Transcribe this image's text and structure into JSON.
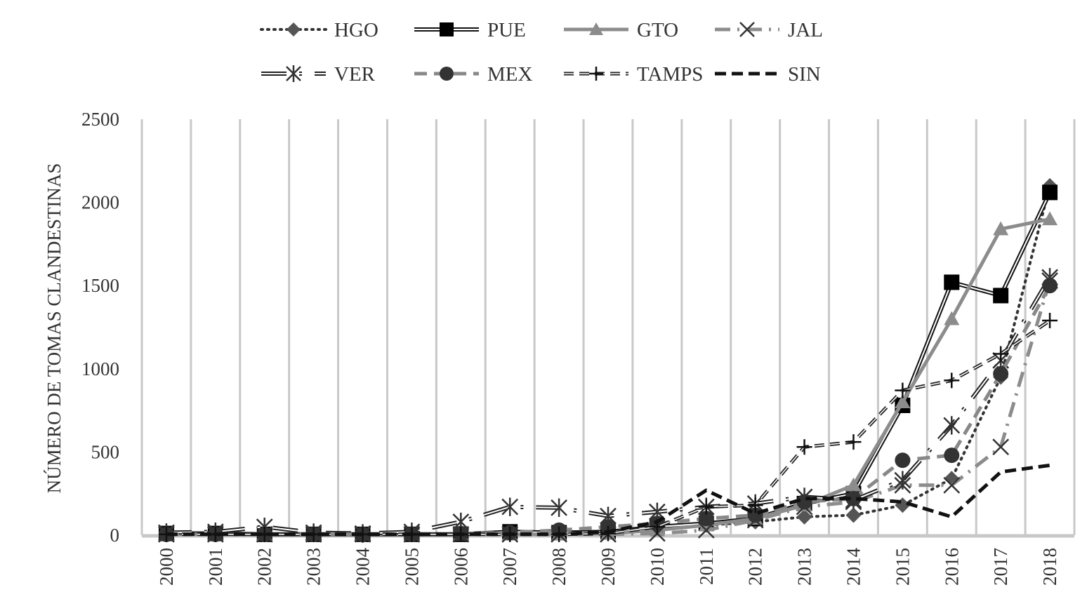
{
  "chart_data": {
    "type": "line",
    "title": "",
    "xlabel": "",
    "ylabel": "NÚMERO DE TOMAS CLANDESTINAS",
    "ylim": [
      0,
      2500
    ],
    "yticks": [
      0,
      500,
      1000,
      1500,
      2000,
      2500
    ],
    "grid": "vertical",
    "legend_position": "top",
    "categories": [
      "2000",
      "2001",
      "2002",
      "2003",
      "2004",
      "2005",
      "2006",
      "2007",
      "2008",
      "2009",
      "2010",
      "2011",
      "2012",
      "2013",
      "2014",
      "2015",
      "2016",
      "2017",
      "2018"
    ],
    "series": [
      {
        "name": "HGO",
        "style": "dotted",
        "marker": "diamond",
        "color": "#333333",
        "values": [
          5,
          5,
          5,
          5,
          5,
          5,
          5,
          10,
          10,
          20,
          40,
          60,
          80,
          110,
          120,
          180,
          340,
          950,
          2100
        ]
      },
      {
        "name": "PUE",
        "style": "double",
        "marker": "square",
        "color": "#111111",
        "values": [
          10,
          10,
          5,
          5,
          5,
          5,
          5,
          20,
          15,
          20,
          50,
          70,
          100,
          190,
          250,
          780,
          1520,
          1440,
          2060
        ]
      },
      {
        "name": "GTO",
        "style": "solid-gray",
        "marker": "triangle",
        "color": "#8c8c8c",
        "values": [
          5,
          5,
          5,
          5,
          5,
          5,
          5,
          5,
          5,
          10,
          30,
          60,
          100,
          180,
          300,
          800,
          1300,
          1840,
          1900
        ]
      },
      {
        "name": "JAL",
        "style": "dashdot-gray",
        "marker": "x",
        "color": "#8c8c8c",
        "values": [
          5,
          5,
          5,
          5,
          5,
          5,
          5,
          5,
          5,
          5,
          10,
          30,
          90,
          170,
          200,
          300,
          300,
          530,
          1530
        ]
      },
      {
        "name": "VER",
        "style": "double-dotted",
        "marker": "asterisk",
        "color": "#222222",
        "values": [
          15,
          20,
          50,
          15,
          10,
          20,
          80,
          170,
          165,
          115,
          140,
          170,
          190,
          230,
          210,
          330,
          660,
          1050,
          1550
        ]
      },
      {
        "name": "MEX",
        "style": "dashed-gray",
        "marker": "circle",
        "color": "#444444",
        "values": [
          5,
          5,
          5,
          5,
          5,
          5,
          10,
          15,
          30,
          50,
          70,
          100,
          120,
          200,
          220,
          450,
          480,
          970,
          1500
        ]
      },
      {
        "name": "TAMPS",
        "style": "double-dashed",
        "marker": "plus",
        "color": "#222222",
        "values": [
          5,
          5,
          5,
          5,
          5,
          5,
          5,
          5,
          5,
          10,
          50,
          170,
          180,
          530,
          560,
          870,
          930,
          1090,
          1290
        ]
      },
      {
        "name": "SIN",
        "style": "heavy-dashed",
        "marker": "none",
        "color": "#111111",
        "values": [
          5,
          5,
          5,
          5,
          5,
          5,
          5,
          5,
          5,
          20,
          80,
          270,
          130,
          220,
          220,
          200,
          110,
          380,
          420
        ]
      }
    ]
  }
}
